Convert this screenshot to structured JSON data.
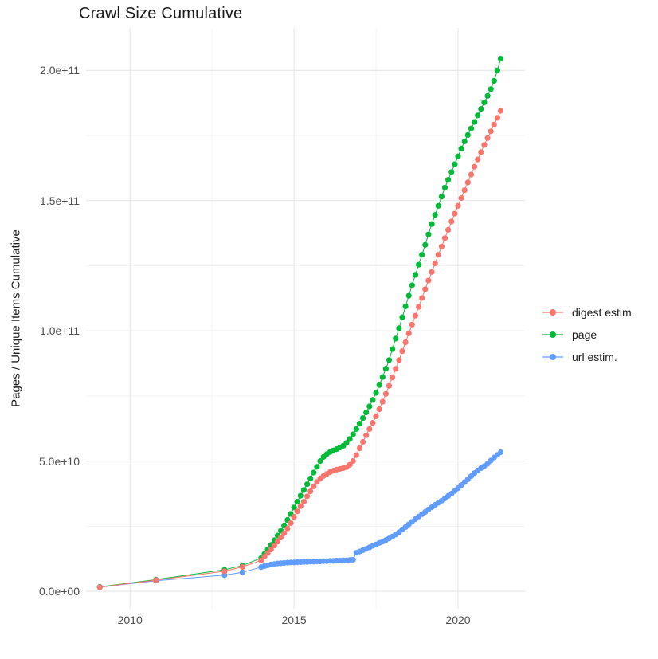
{
  "figure": {
    "title": "Crawl Size Cumulative"
  },
  "chart_data": {
    "type": "scatter",
    "style": "points connected by thin lines, ggplot-like white panel with light gray major/minor grid",
    "title": "Crawl Size Cumulative",
    "xlabel": "",
    "ylabel": "Pages / Unique Items Cumulative",
    "value_unit": "pages, stored in billions (1e9)",
    "xlim": [
      2008.66,
      2022.04
    ],
    "ylim": [
      -6.7,
      216.3
    ],
    "grid": "on",
    "legend_position": "right-center",
    "x_ticks": [
      {
        "value": 2010,
        "label": "2010"
      },
      {
        "value": 2015,
        "label": "2015"
      },
      {
        "value": 2020,
        "label": "2020"
      }
    ],
    "x_minor": [
      2012.5,
      2017.5
    ],
    "y_ticks": [
      {
        "value": 0,
        "label": "0.0e+00"
      },
      {
        "value": 50,
        "label": "5.0e+10"
      },
      {
        "value": 100,
        "label": "1.0e+11"
      },
      {
        "value": 150,
        "label": "1.5e+11"
      },
      {
        "value": 200,
        "label": "2.0e+11"
      }
    ],
    "y_minor": [
      25,
      75,
      125,
      175
    ],
    "colors": {
      "digest_estim": "#F8766D",
      "page": "#00BA38",
      "url_estim": "#619CFF"
    },
    "series": [
      {
        "name": "digest estim.",
        "color": "#F8766D",
        "points": [
          [
            2009.08,
            1.6
          ],
          [
            2010.79,
            4.3
          ],
          [
            2012.88,
            7.7
          ],
          [
            2013.43,
            9.4
          ],
          [
            2014.0,
            11.9
          ],
          [
            2014.1,
            13.3
          ],
          [
            2014.2,
            14.7
          ],
          [
            2014.3,
            16.1
          ],
          [
            2014.4,
            17.6
          ],
          [
            2014.5,
            19.1
          ],
          [
            2014.6,
            20.7
          ],
          [
            2014.7,
            22.3
          ],
          [
            2014.8,
            24.1
          ],
          [
            2014.9,
            26.2
          ],
          [
            2015.0,
            28.6
          ],
          [
            2015.1,
            30.7
          ],
          [
            2015.2,
            32.7
          ],
          [
            2015.3,
            34.4
          ],
          [
            2015.4,
            36.5
          ],
          [
            2015.5,
            38.4
          ],
          [
            2015.6,
            40.3
          ],
          [
            2015.7,
            42.0
          ],
          [
            2015.8,
            43.3
          ],
          [
            2015.9,
            44.3
          ],
          [
            2016.0,
            45.1
          ],
          [
            2016.1,
            45.8
          ],
          [
            2016.2,
            46.3
          ],
          [
            2016.3,
            46.7
          ],
          [
            2016.4,
            47.0
          ],
          [
            2016.5,
            47.3
          ],
          [
            2016.6,
            47.7
          ],
          [
            2016.7,
            48.6
          ],
          [
            2016.8,
            50.0
          ],
          [
            2016.9,
            52.3
          ],
          [
            2017.0,
            54.9
          ],
          [
            2017.1,
            57.4
          ],
          [
            2017.2,
            59.9
          ],
          [
            2017.3,
            62.3
          ],
          [
            2017.4,
            64.7
          ],
          [
            2017.5,
            67.2
          ],
          [
            2017.6,
            69.9
          ],
          [
            2017.7,
            72.8
          ],
          [
            2017.8,
            75.8
          ],
          [
            2017.9,
            78.9
          ],
          [
            2018.0,
            82.1
          ],
          [
            2018.1,
            85.4
          ],
          [
            2018.2,
            88.8
          ],
          [
            2018.3,
            92.2
          ],
          [
            2018.4,
            95.6
          ],
          [
            2018.5,
            99.0
          ],
          [
            2018.6,
            102.4
          ],
          [
            2018.7,
            105.8
          ],
          [
            2018.8,
            109.2
          ],
          [
            2018.9,
            112.6
          ],
          [
            2019.0,
            116.0
          ],
          [
            2019.1,
            119.3
          ],
          [
            2019.2,
            122.6
          ],
          [
            2019.3,
            125.9
          ],
          [
            2019.4,
            129.2
          ],
          [
            2019.5,
            132.4
          ],
          [
            2019.6,
            135.6
          ],
          [
            2019.7,
            138.8
          ],
          [
            2019.8,
            142.0
          ],
          [
            2019.9,
            145.0
          ],
          [
            2020.0,
            148.0
          ],
          [
            2020.1,
            151.0
          ],
          [
            2020.2,
            154.0
          ],
          [
            2020.3,
            157.0
          ],
          [
            2020.4,
            160.0
          ],
          [
            2020.5,
            163.0
          ],
          [
            2020.6,
            165.8
          ],
          [
            2020.7,
            168.6
          ],
          [
            2020.8,
            171.4
          ],
          [
            2020.9,
            174.0
          ],
          [
            2021.0,
            176.6
          ],
          [
            2021.1,
            179.2
          ],
          [
            2021.2,
            181.8
          ],
          [
            2021.3,
            184.5
          ]
        ]
      },
      {
        "name": "page",
        "color": "#00BA38",
        "points": [
          [
            2009.08,
            1.7
          ],
          [
            2010.79,
            4.5
          ],
          [
            2012.88,
            8.3
          ],
          [
            2013.43,
            9.9
          ],
          [
            2014.0,
            12.8
          ],
          [
            2014.1,
            14.4
          ],
          [
            2014.2,
            16.1
          ],
          [
            2014.3,
            17.8
          ],
          [
            2014.4,
            19.6
          ],
          [
            2014.5,
            21.4
          ],
          [
            2014.6,
            23.3
          ],
          [
            2014.7,
            25.3
          ],
          [
            2014.8,
            27.4
          ],
          [
            2014.9,
            29.7
          ],
          [
            2015.0,
            32.2
          ],
          [
            2015.1,
            34.4
          ],
          [
            2015.2,
            36.7
          ],
          [
            2015.3,
            38.9
          ],
          [
            2015.4,
            41.1
          ],
          [
            2015.5,
            43.3
          ],
          [
            2015.6,
            45.6
          ],
          [
            2015.7,
            47.8
          ],
          [
            2015.8,
            50.0
          ],
          [
            2015.9,
            51.6
          ],
          [
            2016.0,
            52.7
          ],
          [
            2016.1,
            53.5
          ],
          [
            2016.2,
            54.1
          ],
          [
            2016.3,
            54.6
          ],
          [
            2016.4,
            55.2
          ],
          [
            2016.5,
            55.9
          ],
          [
            2016.6,
            57.0
          ],
          [
            2016.7,
            58.5
          ],
          [
            2016.8,
            60.3
          ],
          [
            2016.9,
            62.3
          ],
          [
            2017.0,
            64.4
          ],
          [
            2017.1,
            66.5
          ],
          [
            2017.2,
            68.7
          ],
          [
            2017.3,
            71.0
          ],
          [
            2017.4,
            73.5
          ],
          [
            2017.5,
            76.2
          ],
          [
            2017.6,
            79.2
          ],
          [
            2017.7,
            82.3
          ],
          [
            2017.8,
            85.5
          ],
          [
            2017.9,
            88.8
          ],
          [
            2018.0,
            93.0
          ],
          [
            2018.1,
            97.0
          ],
          [
            2018.2,
            101.0
          ],
          [
            2018.3,
            105.2
          ],
          [
            2018.4,
            109.4
          ],
          [
            2018.5,
            113.5
          ],
          [
            2018.6,
            117.5
          ],
          [
            2018.7,
            121.5
          ],
          [
            2018.8,
            125.4
          ],
          [
            2018.9,
            129.2
          ],
          [
            2019.0,
            133.0
          ],
          [
            2019.1,
            137.0
          ],
          [
            2019.2,
            141.0
          ],
          [
            2019.3,
            144.5
          ],
          [
            2019.4,
            148.0
          ],
          [
            2019.5,
            151.5
          ],
          [
            2019.6,
            155.0
          ],
          [
            2019.7,
            158.0
          ],
          [
            2019.8,
            161.0
          ],
          [
            2019.9,
            164.0
          ],
          [
            2020.0,
            167.0
          ],
          [
            2020.1,
            170.0
          ],
          [
            2020.2,
            172.7
          ],
          [
            2020.3,
            175.2
          ],
          [
            2020.4,
            177.7
          ],
          [
            2020.5,
            180.2
          ],
          [
            2020.6,
            182.7
          ],
          [
            2020.7,
            185.2
          ],
          [
            2020.8,
            187.7
          ],
          [
            2020.9,
            190.2
          ],
          [
            2021.0,
            192.8
          ],
          [
            2021.1,
            196.0
          ],
          [
            2021.2,
            200.0
          ],
          [
            2021.3,
            204.5
          ]
        ]
      },
      {
        "name": "url estim.",
        "color": "#619CFF",
        "points": [
          [
            2009.08,
            1.6
          ],
          [
            2010.79,
            4.1
          ],
          [
            2012.88,
            6.2
          ],
          [
            2013.43,
            7.3
          ],
          [
            2014.0,
            9.3
          ],
          [
            2014.1,
            9.7
          ],
          [
            2014.2,
            10.0
          ],
          [
            2014.3,
            10.3
          ],
          [
            2014.4,
            10.5
          ],
          [
            2014.5,
            10.7
          ],
          [
            2014.6,
            10.8
          ],
          [
            2014.7,
            10.9
          ],
          [
            2014.8,
            11.0
          ],
          [
            2014.9,
            11.1
          ],
          [
            2015.0,
            11.1
          ],
          [
            2015.1,
            11.2
          ],
          [
            2015.2,
            11.2
          ],
          [
            2015.3,
            11.3
          ],
          [
            2015.4,
            11.3
          ],
          [
            2015.5,
            11.4
          ],
          [
            2015.6,
            11.4
          ],
          [
            2015.7,
            11.5
          ],
          [
            2015.8,
            11.5
          ],
          [
            2015.9,
            11.6
          ],
          [
            2016.0,
            11.6
          ],
          [
            2016.1,
            11.7
          ],
          [
            2016.2,
            11.7
          ],
          [
            2016.3,
            11.8
          ],
          [
            2016.4,
            11.8
          ],
          [
            2016.5,
            11.9
          ],
          [
            2016.6,
            11.9
          ],
          [
            2016.7,
            12.0
          ],
          [
            2016.8,
            12.1
          ],
          [
            2016.9,
            14.8
          ],
          [
            2017.0,
            15.3
          ],
          [
            2017.1,
            15.8
          ],
          [
            2017.2,
            16.3
          ],
          [
            2017.3,
            16.9
          ],
          [
            2017.4,
            17.5
          ],
          [
            2017.5,
            18.0
          ],
          [
            2017.6,
            18.6
          ],
          [
            2017.7,
            19.1
          ],
          [
            2017.8,
            19.7
          ],
          [
            2017.9,
            20.3
          ],
          [
            2018.0,
            21.0
          ],
          [
            2018.1,
            21.8
          ],
          [
            2018.2,
            22.7
          ],
          [
            2018.3,
            23.7
          ],
          [
            2018.4,
            24.7
          ],
          [
            2018.5,
            25.7
          ],
          [
            2018.6,
            26.7
          ],
          [
            2018.7,
            27.7
          ],
          [
            2018.8,
            28.7
          ],
          [
            2018.9,
            29.6
          ],
          [
            2019.0,
            30.5
          ],
          [
            2019.1,
            31.4
          ],
          [
            2019.2,
            32.3
          ],
          [
            2019.3,
            33.2
          ],
          [
            2019.4,
            34.0
          ],
          [
            2019.5,
            34.8
          ],
          [
            2019.6,
            35.7
          ],
          [
            2019.7,
            36.6
          ],
          [
            2019.8,
            37.5
          ],
          [
            2019.9,
            38.5
          ],
          [
            2020.0,
            39.6
          ],
          [
            2020.1,
            40.8
          ],
          [
            2020.2,
            41.9
          ],
          [
            2020.3,
            43.0
          ],
          [
            2020.4,
            44.2
          ],
          [
            2020.5,
            45.4
          ],
          [
            2020.6,
            46.4
          ],
          [
            2020.7,
            47.3
          ],
          [
            2020.8,
            48.1
          ],
          [
            2020.9,
            49.0
          ],
          [
            2021.0,
            50.2
          ],
          [
            2021.1,
            51.4
          ],
          [
            2021.2,
            52.4
          ],
          [
            2021.3,
            53.4
          ]
        ]
      }
    ]
  }
}
